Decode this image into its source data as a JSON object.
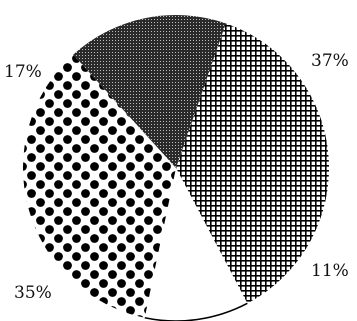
{
  "chart_data": {
    "type": "pie",
    "slices": [
      {
        "label": "37%",
        "value": 37,
        "pattern": "crosshatch",
        "color": "#000000"
      },
      {
        "label": "11%",
        "value": 11,
        "pattern": "blank",
        "color": "#ffffff"
      },
      {
        "label": "35%",
        "value": 35,
        "pattern": "large-dots",
        "color": "#000000"
      },
      {
        "label": "17%",
        "value": 17,
        "pattern": "dark-stipple",
        "color": "#2a2a2a"
      }
    ],
    "legend": "none"
  }
}
